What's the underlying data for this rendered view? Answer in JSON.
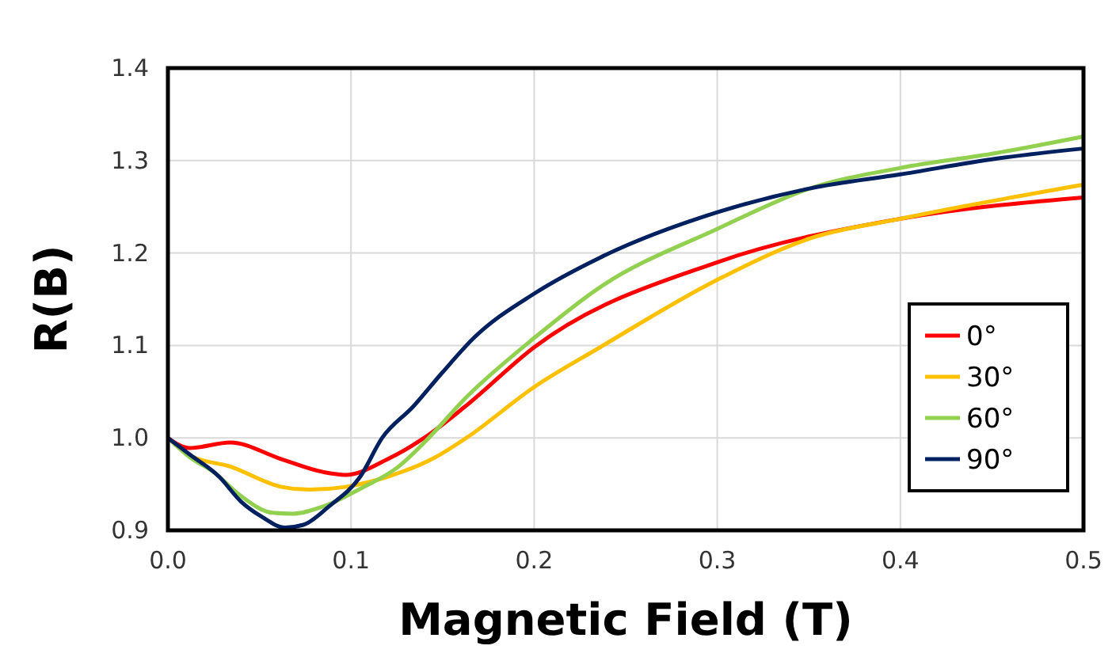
{
  "chart_data": {
    "type": "line",
    "xlabel": "Magnetic Field (T)",
    "ylabel": "R(B)",
    "xlim": [
      0,
      0.5
    ],
    "ylim": [
      0.9,
      1.4
    ],
    "xticks": [
      {
        "value": 0,
        "label": "0.0"
      },
      0.1,
      0.2,
      0.3,
      0.4,
      0.5
    ],
    "yticks": [
      0.9,
      {
        "value": 1,
        "label": "1.0"
      },
      1.1,
      1.2,
      1.3,
      1.4
    ],
    "grid": true,
    "legend": "bottom right",
    "marker": "none",
    "line_style": "solid",
    "series": [
      {
        "name": "0°",
        "color": "#ff0000",
        "x": [
          0,
          0.012,
          0.034,
          0.062,
          0.085,
          0.097,
          0.12,
          0.14,
          0.163,
          0.2,
          0.3,
          0.4,
          0.5
        ],
        "values": [
          1.0,
          0.989,
          0.995,
          0.977,
          0.963,
          0.96,
          0.977,
          1.0,
          1.035,
          1.098,
          1.19,
          1.237,
          1.26
        ]
      },
      {
        "name": "30°",
        "color": "#ffc000",
        "x": [
          0,
          0.012,
          0.034,
          0.062,
          0.077,
          0.097,
          0.12,
          0.146,
          0.163,
          0.2,
          0.236,
          0.3,
          0.351,
          0.4,
          0.5
        ],
        "values": [
          1.0,
          0.981,
          0.969,
          0.947,
          0.944,
          0.947,
          0.958,
          0.979,
          1.0,
          1.055,
          1.098,
          1.171,
          1.216,
          1.237,
          1.274
        ]
      },
      {
        "name": "60°",
        "color": "#92d050",
        "x": [
          0,
          0.012,
          0.025,
          0.04,
          0.057,
          0.068,
          0.085,
          0.105,
          0.126,
          0.14,
          0.163,
          0.2,
          0.236,
          0.3,
          0.351,
          0.4,
          0.452,
          0.5
        ],
        "values": [
          1.0,
          0.979,
          0.963,
          0.937,
          0.919,
          0.918,
          0.926,
          0.945,
          0.969,
          0.995,
          1.044,
          1.108,
          1.163,
          1.226,
          1.27,
          1.292,
          1.308,
          1.326
        ]
      },
      {
        "name": "90°",
        "color": "#002060",
        "x": [
          0,
          0.012,
          0.028,
          0.04,
          0.051,
          0.064,
          0.074,
          0.088,
          0.105,
          0.117,
          0.134,
          0.15,
          0.167,
          0.2,
          0.236,
          0.3,
          0.351,
          0.4,
          0.452,
          0.5
        ],
        "values": [
          1.0,
          0.982,
          0.958,
          0.931,
          0.915,
          0.903,
          0.906,
          0.926,
          0.958,
          1.0,
          1.034,
          1.071,
          1.108,
          1.156,
          1.195,
          1.244,
          1.27,
          1.285,
          1.302,
          1.313
        ]
      }
    ]
  }
}
